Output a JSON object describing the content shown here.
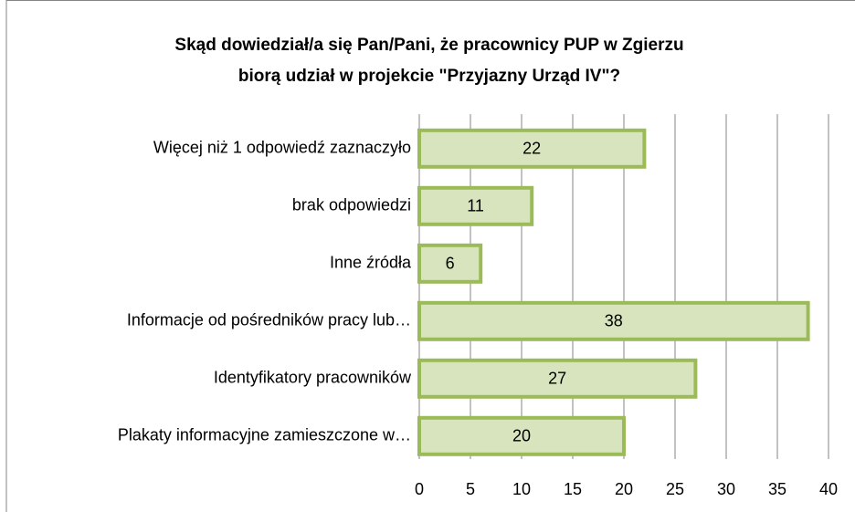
{
  "chart_data": {
    "type": "barh",
    "title": [
      "Skąd dowiedział/a się Pan/Pani, że pracownicy PUP w Zgierzu",
      "biorą udział w projekcie \"Przyjazny Urząd IV\"?"
    ],
    "categories": [
      "Więcej niż 1 odpowiedź zaznaczyło",
      "brak odpowiedzi",
      "Inne źródła",
      "Informacje od pośredników pracy lub…",
      "Identyfikatory pracowników",
      "Plakaty informacyjne zamieszczone w…"
    ],
    "values": [
      22,
      11,
      6,
      38,
      27,
      20
    ],
    "color": "#d7e4bd",
    "edge_color": "#9bbb59",
    "xlim": [
      0,
      40
    ],
    "xticks": [
      0,
      5,
      10,
      15,
      20,
      25,
      30,
      35,
      40
    ],
    "grid": true
  }
}
